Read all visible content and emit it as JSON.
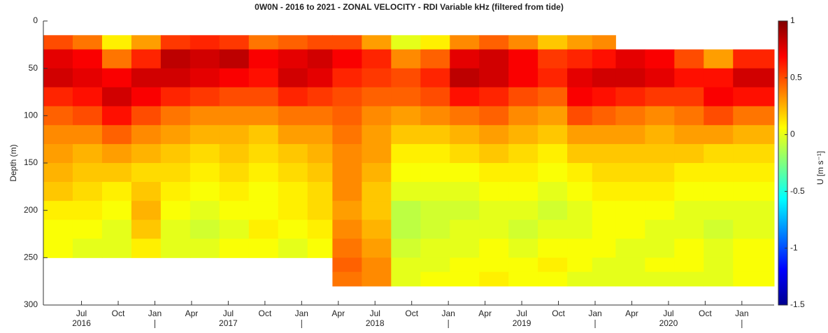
{
  "chart_data": {
    "type": "heatmap",
    "title": "0W0N - 2016 to 2021 - ZONAL VELOCITY - RDI Variable kHz (filtered from tide)",
    "y_label": "Depth (m)",
    "colorbar_label": "U [m s⁻¹]",
    "colormap": "jet",
    "clim": [
      -1.5,
      1
    ],
    "cticks": [
      1,
      0.5,
      0,
      -0.5,
      -1,
      -1.5
    ],
    "y_reversed": true,
    "xlim": [
      2016.24,
      2021.22
    ],
    "ylim": [
      0,
      300
    ],
    "yticks": [
      0,
      50,
      100,
      150,
      200,
      250,
      300
    ],
    "xticks": [
      {
        "value": 2016.5,
        "label": "Jul"
      },
      {
        "value": 2016.75,
        "label": "Oct"
      },
      {
        "value": 2017.0,
        "label": "Jan"
      },
      {
        "value": 2017.25,
        "label": "Apr"
      },
      {
        "value": 2017.5,
        "label": "Jul"
      },
      {
        "value": 2017.75,
        "label": "Oct"
      },
      {
        "value": 2018.0,
        "label": "Jan"
      },
      {
        "value": 2018.25,
        "label": "Apr"
      },
      {
        "value": 2018.5,
        "label": "Jul"
      },
      {
        "value": 2018.75,
        "label": "Oct"
      },
      {
        "value": 2019.0,
        "label": "Jan"
      },
      {
        "value": 2019.25,
        "label": "Apr"
      },
      {
        "value": 2019.5,
        "label": "Jul"
      },
      {
        "value": 2019.75,
        "label": "Oct"
      },
      {
        "value": 2020.0,
        "label": "Jan"
      },
      {
        "value": 2020.25,
        "label": "Apr"
      },
      {
        "value": 2020.5,
        "label": "Jul"
      },
      {
        "value": 2020.75,
        "label": "Oct"
      },
      {
        "value": 2021.0,
        "label": "Jan"
      }
    ],
    "year_ticks": [
      {
        "value": 2016.5,
        "label": "2016"
      },
      {
        "value": 2017.5,
        "label": "2017"
      },
      {
        "value": 2018.5,
        "label": "2018"
      },
      {
        "value": 2019.5,
        "label": "2019"
      },
      {
        "value": 2020.5,
        "label": "2020"
      }
    ],
    "time_bins": [
      2016.24,
      2016.44,
      2016.64,
      2016.84,
      2017.04,
      2017.24,
      2017.44,
      2017.64,
      2017.84,
      2018.04,
      2018.21,
      2018.41,
      2018.61,
      2018.81,
      2019.01,
      2019.21,
      2019.41,
      2019.61,
      2019.81,
      2019.98,
      2020.14,
      2020.34,
      2020.54,
      2020.74,
      2020.94,
      2021.22
    ],
    "depth_bins": [
      15,
      30,
      50,
      70,
      90,
      110,
      130,
      150,
      170,
      190,
      210,
      230,
      250,
      265,
      280
    ],
    "values": [
      [
        0.5,
        0.75,
        0.8,
        0.6,
        0.45,
        0.35,
        0.3,
        0.25,
        0.2,
        0.1,
        0.05,
        0.05,
        null,
        null
      ],
      [
        0.4,
        0.7,
        0.75,
        0.65,
        0.5,
        0.35,
        0.25,
        0.2,
        0.15,
        0.1,
        0.05,
        0.0,
        null,
        null
      ],
      [
        0.1,
        0.4,
        0.7,
        0.8,
        0.65,
        0.45,
        0.3,
        0.2,
        0.1,
        0.05,
        0.0,
        0.0,
        null,
        null
      ],
      [
        0.3,
        0.6,
        0.8,
        0.7,
        0.5,
        0.35,
        0.25,
        0.15,
        0.2,
        0.25,
        0.2,
        0.1,
        null,
        null
      ],
      [
        0.55,
        0.85,
        0.8,
        0.6,
        0.4,
        0.3,
        0.2,
        0.15,
        0.1,
        0.05,
        0.0,
        0.0,
        null,
        null
      ],
      [
        0.6,
        0.8,
        0.75,
        0.55,
        0.35,
        0.25,
        0.15,
        0.1,
        0.05,
        0.0,
        -0.05,
        0.0,
        null,
        null
      ],
      [
        0.55,
        0.85,
        0.7,
        0.5,
        0.35,
        0.25,
        0.2,
        0.15,
        0.1,
        0.05,
        0.0,
        0.05,
        null,
        null
      ],
      [
        0.4,
        0.7,
        0.65,
        0.5,
        0.35,
        0.2,
        0.15,
        0.1,
        0.05,
        0.05,
        0.1,
        0.05,
        null,
        null
      ],
      [
        0.45,
        0.75,
        0.8,
        0.6,
        0.4,
        0.3,
        0.2,
        0.15,
        0.1,
        0.1,
        0.05,
        0.0,
        null,
        null
      ],
      [
        0.5,
        0.8,
        0.75,
        0.55,
        0.4,
        0.3,
        0.25,
        0.2,
        0.15,
        0.15,
        0.1,
        0.05,
        null,
        null
      ],
      [
        0.5,
        0.7,
        0.6,
        0.5,
        0.45,
        0.4,
        0.35,
        0.35,
        0.35,
        0.3,
        0.35,
        0.4,
        0.45,
        0.4
      ],
      [
        0.3,
        0.6,
        0.55,
        0.45,
        0.35,
        0.3,
        0.3,
        0.25,
        0.2,
        0.2,
        0.25,
        0.3,
        0.35,
        0.35
      ],
      [
        0.0,
        0.35,
        0.5,
        0.45,
        0.3,
        0.2,
        0.1,
        0.05,
        0.0,
        -0.1,
        -0.1,
        -0.05,
        0.0,
        0.0
      ],
      [
        0.1,
        0.45,
        0.6,
        0.5,
        0.35,
        0.2,
        0.1,
        0.05,
        0.0,
        -0.05,
        -0.05,
        0.0,
        0.0,
        0.05
      ],
      [
        0.35,
        0.75,
        0.85,
        0.65,
        0.4,
        0.25,
        0.15,
        0.05,
        0.0,
        -0.05,
        0.0,
        0.0,
        0.05,
        0.05
      ],
      [
        0.45,
        0.8,
        0.8,
        0.6,
        0.45,
        0.3,
        0.2,
        0.1,
        0.05,
        0.0,
        0.0,
        0.05,
        0.05,
        0.1
      ],
      [
        0.35,
        0.7,
        0.7,
        0.5,
        0.35,
        0.25,
        0.15,
        0.1,
        0.05,
        0.0,
        -0.05,
        0.0,
        0.05,
        0.05
      ],
      [
        0.2,
        0.55,
        0.6,
        0.45,
        0.3,
        0.2,
        0.1,
        0.05,
        0.0,
        -0.05,
        0.0,
        0.05,
        0.1,
        0.05
      ],
      [
        0.3,
        0.6,
        0.75,
        0.7,
        0.5,
        0.3,
        0.2,
        0.1,
        0.05,
        0.0,
        0.0,
        0.05,
        0.05,
        0.0
      ],
      [
        0.35,
        0.65,
        0.8,
        0.65,
        0.45,
        0.3,
        0.2,
        0.15,
        0.1,
        0.05,
        0.05,
        0.05,
        0.0,
        0.0
      ],
      [
        null,
        0.75,
        0.8,
        0.6,
        0.4,
        0.3,
        0.2,
        0.15,
        0.1,
        0.05,
        0.05,
        0.0,
        0.0,
        0.0
      ],
      [
        null,
        0.7,
        0.75,
        0.55,
        0.35,
        0.25,
        0.2,
        0.15,
        0.1,
        0.05,
        0.0,
        0.0,
        0.05,
        0.0
      ],
      [
        null,
        0.5,
        0.65,
        0.55,
        0.4,
        0.3,
        0.2,
        0.1,
        0.05,
        0.0,
        0.0,
        0.05,
        0.05,
        0.0
      ],
      [
        null,
        0.3,
        0.65,
        0.7,
        0.5,
        0.3,
        0.15,
        0.1,
        0.05,
        0.0,
        -0.05,
        0.0,
        0.0,
        0.0
      ],
      [
        null,
        0.6,
        0.8,
        0.65,
        0.4,
        0.25,
        0.15,
        0.1,
        0.05,
        0.0,
        0.0,
        0.05,
        0.05,
        0.05
      ]
    ]
  }
}
